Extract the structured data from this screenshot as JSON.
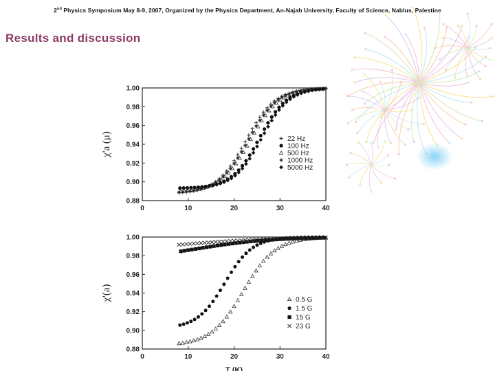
{
  "header": {
    "prefix": "2",
    "sup": "nd",
    "rest": " Physics Symposium May 8-9, 2007, Organized by the Physics Department, An-Najah University, Faculty of Science, Nablus, Palestine"
  },
  "slide_title": "Results and discussion",
  "colors": {
    "title": "#8b3a62",
    "ink": "#222222",
    "fireworks": [
      "#f29ec0",
      "#f7d14a",
      "#9fd7ef",
      "#b9e08c",
      "#f5b07a",
      "#c9a5e8"
    ]
  },
  "chart_data": [
    {
      "type": "scatter",
      "title": "",
      "ylabel": "χ'a (μ)",
      "xlabel": "",
      "xlim": [
        0,
        40
      ],
      "ylim": [
        0.88,
        1.0
      ],
      "xticks": [
        "0",
        "10",
        "20",
        "30",
        "40"
      ],
      "yticks": [
        "0.88",
        "0.90",
        "0.92",
        "0.94",
        "0.96",
        "0.98",
        "1.00"
      ],
      "legend_position": "right",
      "series": [
        {
          "name": "22 Hz",
          "marker": "plus",
          "params": {
            "min": 0.887,
            "mid": 22.5,
            "width": 3.2
          }
        },
        {
          "name": "100 Hz",
          "marker": "circle",
          "params": {
            "min": 0.893,
            "mid": 25.5,
            "width": 3.0
          }
        },
        {
          "name": "500 Hz",
          "marker": "triangle",
          "params": {
            "min": 0.889,
            "mid": 23.5,
            "width": 3.2
          }
        },
        {
          "name": "1000 Hz",
          "marker": "star",
          "params": {
            "min": 0.888,
            "mid": 23.0,
            "width": 3.2
          }
        },
        {
          "name": "5000 Hz",
          "marker": "diamond",
          "params": {
            "min": 0.893,
            "mid": 26.0,
            "width": 3.0
          }
        }
      ]
    },
    {
      "type": "scatter",
      "title": "",
      "ylabel": "χ'(a)",
      "xlabel": "T (K)",
      "xlim": [
        0,
        40
      ],
      "ylim": [
        0.88,
        1.0
      ],
      "xticks": [
        "0",
        "10",
        "20",
        "30",
        "40"
      ],
      "yticks": [
        "0.88",
        "0.90",
        "0.92",
        "0.94",
        "0.96",
        "0.98",
        "1.00"
      ],
      "legend_position": "bottom-right",
      "series": [
        {
          "name": "0.5 G",
          "marker": "triangle",
          "params": {
            "min": 0.884,
            "mid": 22.0,
            "width": 3.5
          }
        },
        {
          "name": "1.5 G",
          "marker": "pentagon",
          "params": {
            "min": 0.902,
            "mid": 18.0,
            "width": 3.0
          }
        },
        {
          "name": "15 G",
          "marker": "square",
          "params": {
            "min": 0.975,
            "mid": 12.0,
            "width": 8.0
          }
        },
        {
          "name": "23 G",
          "marker": "cross",
          "params": {
            "min": 0.985,
            "mid": 10.0,
            "width": 10.0
          }
        }
      ]
    }
  ]
}
